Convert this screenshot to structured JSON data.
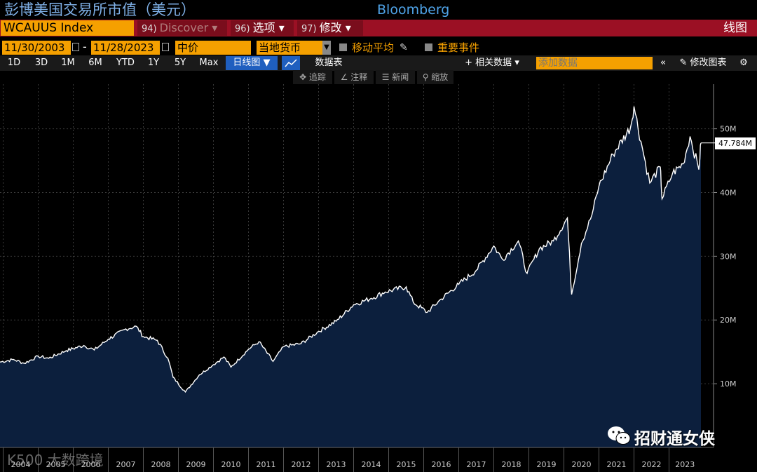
{
  "header": {
    "cn_title": "彭博美国交易所市值（美元）",
    "brand": "Bloomberg",
    "ticker": "WCAUUS Index",
    "menu": [
      {
        "num": "94)",
        "label": "Discover",
        "arrow": "▾"
      },
      {
        "num": "96)",
        "label": "选项",
        "arrow": "▾"
      },
      {
        "num": "97)",
        "label": "修改",
        "arrow": "▾"
      }
    ],
    "chart_type_label": "线图"
  },
  "settings": {
    "date_start": "11/30/2003",
    "date_sep": "-",
    "date_end": "11/28/2023",
    "price_type": "中价",
    "currency": "当地货币",
    "moving_avg_label": "移动平均",
    "events_label": "重要事件"
  },
  "ranges": [
    "1D",
    "3D",
    "1M",
    "6M",
    "YTD",
    "1Y",
    "5Y",
    "Max"
  ],
  "tabs": {
    "daily": "日线图 ▼",
    "datatable": "数据表",
    "related_data": "+ 相关数据 ▾",
    "add_data_placeholder": "添加数据",
    "collapse": "«",
    "edit_chart": "✎ 修改图表",
    "gear": "⚙"
  },
  "tools": {
    "track": "✥ 追踪",
    "annotate": "∠ 注释",
    "news": "☰ 新闻",
    "zoom": "⚲ 缩放"
  },
  "last_price_label": "47.784M",
  "watermarks": {
    "bottom": "K500 大数跨境",
    "wechat": "招财通女侠"
  },
  "colors": {
    "area_fill": "#0c1f3d",
    "line": "#ffffff",
    "accent_orange": "#f5a000",
    "accent_red": "#9b1024"
  },
  "chart_data": {
    "type": "area",
    "title": "彭博美国交易所市值（美元）",
    "series_name": "WCAUUS Index",
    "x_range": [
      2003.91,
      2023.91
    ],
    "ylim": [
      0,
      57
    ],
    "y_ticks": [
      10,
      20,
      30,
      40,
      50
    ],
    "y_tick_labels": [
      "10M",
      "20M",
      "30M",
      "40M",
      "50M"
    ],
    "x_ticks": [
      2004,
      2005,
      2006,
      2007,
      2008,
      2009,
      2010,
      2011,
      2012,
      2013,
      2014,
      2015,
      2016,
      2017,
      2018,
      2019,
      2020,
      2021,
      2022,
      2023
    ],
    "x_tick_labels": [
      "2004",
      "2005",
      "2006",
      "2007",
      "2008",
      "2009",
      "2010",
      "2011",
      "2012",
      "2013",
      "2014",
      "2015",
      "2016",
      "2017",
      "2018",
      "2019",
      "2020",
      "2021",
      "2022",
      "2023"
    ],
    "last_value": 47.784,
    "points": [
      [
        2003.91,
        13.4
      ],
      [
        2004.3,
        13.8
      ],
      [
        2004.6,
        13.2
      ],
      [
        2005.0,
        14.3
      ],
      [
        2005.3,
        14.0
      ],
      [
        2005.8,
        15.2
      ],
      [
        2006.3,
        16.0
      ],
      [
        2006.6,
        15.3
      ],
      [
        2007.0,
        17.0
      ],
      [
        2007.5,
        18.6
      ],
      [
        2007.8,
        19.0
      ],
      [
        2008.0,
        17.4
      ],
      [
        2008.4,
        16.8
      ],
      [
        2008.7,
        14.0
      ],
      [
        2008.85,
        11.0
      ],
      [
        2009.2,
        8.7
      ],
      [
        2009.6,
        11.4
      ],
      [
        2010.0,
        13.0
      ],
      [
        2010.3,
        14.2
      ],
      [
        2010.5,
        12.6
      ],
      [
        2011.0,
        15.4
      ],
      [
        2011.3,
        16.6
      ],
      [
        2011.7,
        13.5
      ],
      [
        2012.0,
        15.8
      ],
      [
        2012.5,
        16.3
      ],
      [
        2013.0,
        18.2
      ],
      [
        2013.5,
        19.8
      ],
      [
        2014.0,
        22.4
      ],
      [
        2014.5,
        23.4
      ],
      [
        2014.9,
        24.4
      ],
      [
        2015.5,
        25.2
      ],
      [
        2015.7,
        22.8
      ],
      [
        2016.1,
        21.2
      ],
      [
        2016.5,
        23.3
      ],
      [
        2017.0,
        25.6
      ],
      [
        2017.5,
        27.8
      ],
      [
        2018.0,
        31.6
      ],
      [
        2018.25,
        29.5
      ],
      [
        2018.7,
        32.4
      ],
      [
        2018.95,
        27.3
      ],
      [
        2019.3,
        31.2
      ],
      [
        2019.7,
        32.4
      ],
      [
        2020.1,
        36.0
      ],
      [
        2020.22,
        24.0
      ],
      [
        2020.5,
        32.0
      ],
      [
        2020.8,
        36.5
      ],
      [
        2021.0,
        41.0
      ],
      [
        2021.4,
        46.0
      ],
      [
        2021.9,
        50.2
      ],
      [
        2022.0,
        53.5
      ],
      [
        2022.2,
        48.0
      ],
      [
        2022.45,
        41.5
      ],
      [
        2022.75,
        44.0
      ],
      [
        2022.8,
        39.0
      ],
      [
        2023.1,
        43.0
      ],
      [
        2023.4,
        44.5
      ],
      [
        2023.6,
        48.8
      ],
      [
        2023.85,
        43.6
      ],
      [
        2023.91,
        47.78
      ]
    ]
  }
}
